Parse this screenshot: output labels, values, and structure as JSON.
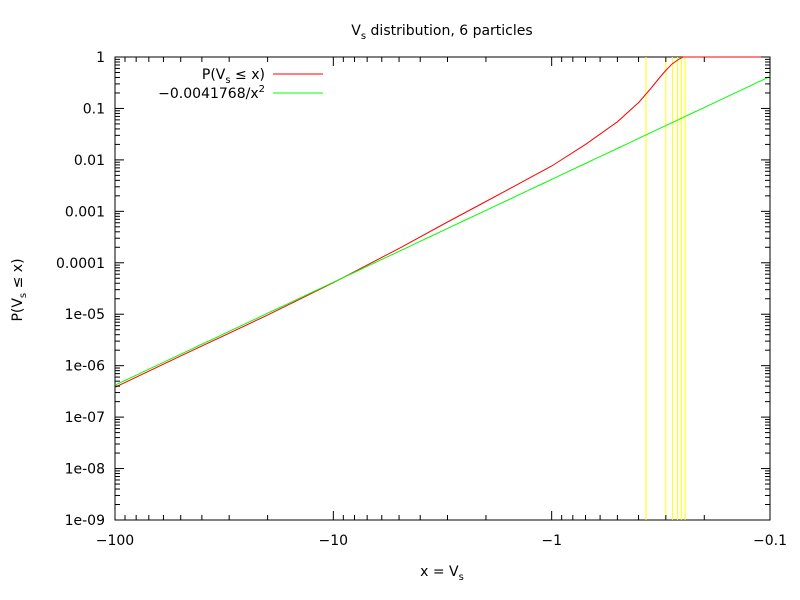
{
  "chart_data": {
    "type": "line",
    "title": {
      "main": "V",
      "sub": "s",
      "rest": " distribution, 6 particles"
    },
    "xlabel": {
      "main": "x = V",
      "sub": "s"
    },
    "ylabel": {
      "pre": "P(V",
      "sub": "s",
      "post": " ≤ x)"
    },
    "x_scale": "log-negative",
    "y_scale": "log",
    "xlim": [
      -100,
      -0.1
    ],
    "ylim": [
      1e-09,
      1
    ],
    "x_ticks": [
      {
        "value": -100,
        "label": "−100"
      },
      {
        "value": -10,
        "label": "−10"
      },
      {
        "value": -1,
        "label": "−1"
      },
      {
        "value": -0.1,
        "label": "−0.1"
      }
    ],
    "y_ticks": [
      {
        "value": 1,
        "label": "1"
      },
      {
        "value": 0.1,
        "label": "0.1"
      },
      {
        "value": 0.01,
        "label": "0.01"
      },
      {
        "value": 0.001,
        "label": "0.001"
      },
      {
        "value": 0.0001,
        "label": "0.0001"
      },
      {
        "value": 1e-05,
        "label": "1e-05"
      },
      {
        "value": 1e-06,
        "label": "1e-06"
      },
      {
        "value": 1e-07,
        "label": "1e-07"
      },
      {
        "value": 1e-08,
        "label": "1e-08"
      },
      {
        "value": 1e-09,
        "label": "1e-09"
      }
    ],
    "grid": false,
    "legend_position": "top-left",
    "series": [
      {
        "name": "P(V_s ≤ x)",
        "legend": {
          "pre": "P(V",
          "sub": "s",
          "post": " ≤ x)"
        },
        "color": "#ff0000",
        "points": [
          [
            -100,
            3.8e-07
          ],
          [
            -50,
            1.55e-06
          ],
          [
            -20,
            9.6e-06
          ],
          [
            -10,
            4.1e-05
          ],
          [
            -5,
            0.00019
          ],
          [
            -3,
            0.00062
          ],
          [
            -2,
            0.00155
          ],
          [
            -1.5,
            0.003
          ],
          [
            -1,
            0.0076
          ],
          [
            -0.7,
            0.02
          ],
          [
            -0.5,
            0.055
          ],
          [
            -0.4,
            0.13
          ],
          [
            -0.35,
            0.25
          ],
          [
            -0.32,
            0.4
          ],
          [
            -0.3,
            0.55
          ],
          [
            -0.28,
            0.74
          ],
          [
            -0.26,
            0.92
          ],
          [
            -0.25,
            1.0
          ],
          [
            -0.1,
            1.0
          ]
        ]
      },
      {
        "name": "−0.0041768/x²",
        "legend": {
          "pre": "−0.0041768/x",
          "sup": "2"
        },
        "color": "#00ff00",
        "coefficient": 0.0041768,
        "exponent": 2
      }
    ],
    "vertical_lines": {
      "color": "#ffff00",
      "x": [
        -0.37,
        -0.3,
        -0.28,
        -0.265,
        -0.255,
        -0.245
      ]
    }
  }
}
